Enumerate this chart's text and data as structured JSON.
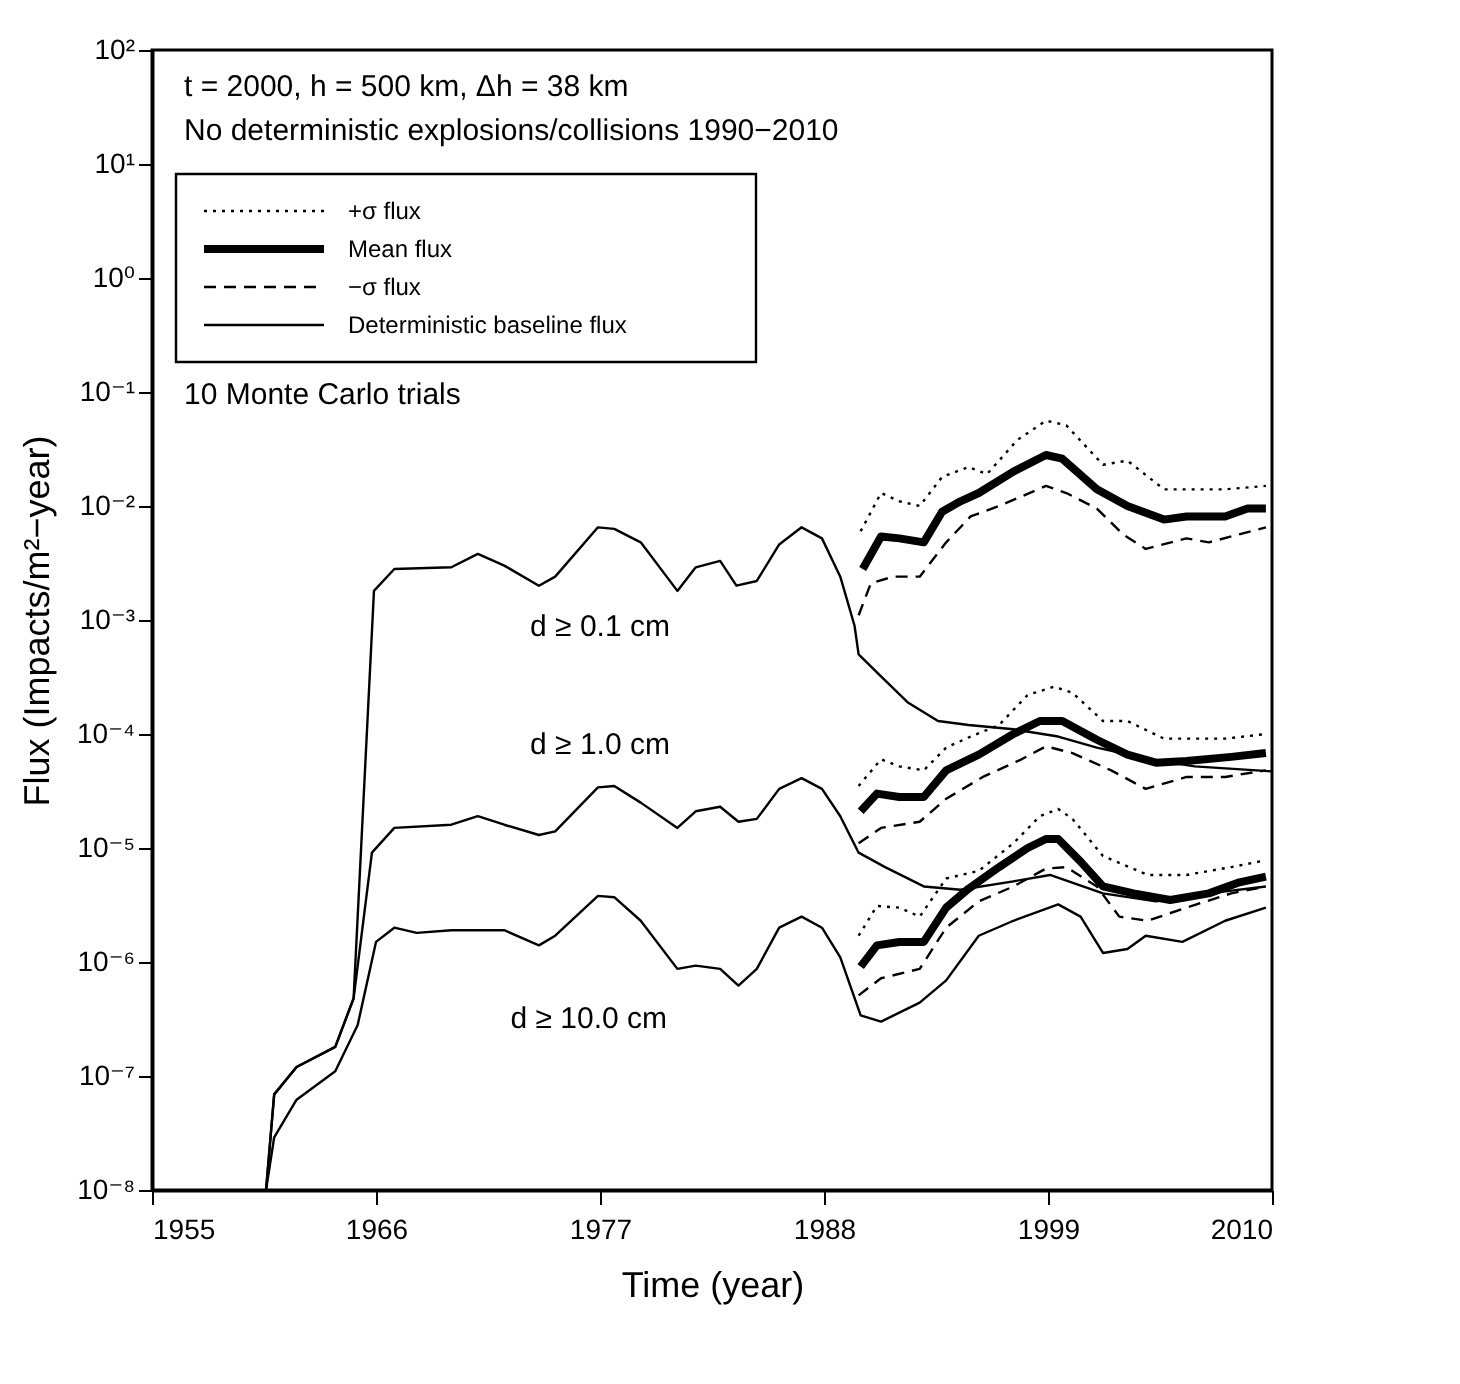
{
  "chart_data": {
    "type": "line",
    "xlabel": "Time (year)",
    "ylabel": "Flux (Impacts/m²−year)",
    "log": "y",
    "grid": false,
    "legend": "top left",
    "xlim": [
      1955,
      2010
    ],
    "xticks": [
      1955,
      1966,
      1977,
      1988,
      1999,
      2010
    ],
    "ylim": [
      1e-08,
      100
    ],
    "yticks": [
      {
        "value": 1e-08,
        "label": "10⁻⁸"
      },
      {
        "value": 1e-07,
        "label": "10⁻⁷"
      },
      {
        "value": 1e-06,
        "label": "10⁻⁶"
      },
      {
        "value": 1e-05,
        "label": "10⁻⁵"
      },
      {
        "value": 0.0001,
        "label": "10⁻⁴"
      },
      {
        "value": 0.001,
        "label": "10⁻³"
      },
      {
        "value": 0.01,
        "label": "10⁻²"
      },
      {
        "value": 0.1,
        "label": "10⁻¹"
      },
      {
        "value": 1,
        "label": "10⁰"
      },
      {
        "value": 10,
        "label": "10¹"
      },
      {
        "value": 100,
        "label": "10²"
      }
    ],
    "annotations": [
      "t = 2000, h = 500 km, Δh = 38 km",
      "No deterministic explosions/collisions 1990−2010",
      "10 Monte Carlo trials",
      "d ≥ 0.1 cm",
      "d ≥ 1.0 cm",
      "d ≥ 10.0 cm"
    ],
    "series": [
      {
        "name": "+σ flux",
        "color": "#000000",
        "line_style": "dotted",
        "x": [
          1989.8,
          1990.8,
          1991.7,
          1992.7,
          1993.8,
          1995.1,
          1996,
          1997.5,
          1998.9,
          1999.9,
          2001.7,
          2002.9,
          2004.7,
          2007.7,
          2009.7
        ],
        "values": [
          0.006,
          0.013,
          0.011,
          0.01,
          0.018,
          0.022,
          0.019,
          0.038,
          0.056,
          0.051,
          0.023,
          0.025,
          0.014,
          0.014,
          0.015
        ]
      },
      {
        "name": "Mean flux",
        "color": "#000000",
        "line_style": "solid",
        "x": [
          1989.9,
          1990.8,
          1991.7,
          1992.9,
          1993.8,
          1994.7,
          1995.6,
          1997.3,
          1998.9,
          1999.7,
          2001.4,
          2002.9,
          2004.7,
          2005.8,
          2007.7,
          2008.8,
          2009.7
        ],
        "values": [
          0.0028,
          0.0054,
          0.0052,
          0.0048,
          0.0089,
          0.011,
          0.013,
          0.02,
          0.028,
          0.026,
          0.014,
          0.01,
          0.0076,
          0.0081,
          0.0081,
          0.0095,
          0.0095
        ]
      },
      {
        "name": "−σ flux",
        "color": "#000000",
        "line_style": "dashed",
        "x": [
          1989.7,
          1990.3,
          1991.4,
          1992.7,
          1994,
          1995.2,
          1996.6,
          1998.9,
          1999.9,
          2001.4,
          2002.7,
          2003.8,
          2005.8,
          2006.9,
          2009.7
        ],
        "values": [
          0.0011,
          0.0021,
          0.0024,
          0.0024,
          0.0048,
          0.0081,
          0.01,
          0.015,
          0.013,
          0.0095,
          0.0056,
          0.0042,
          0.0052,
          0.0048,
          0.0065
        ]
      },
      {
        "name": "Deterministic baseline flux",
        "color": "#000000",
        "line_style": "solid",
        "x": [
          1960.6,
          1961,
          1962.1,
          1964,
          1964.9,
          1965.9,
          1966.9,
          1969.7,
          1971,
          1972.3,
          1974,
          1974.8,
          1976.9,
          1977.7,
          1979,
          1980.8,
          1981.7,
          1982.9,
          1983.7,
          1984.7,
          1985.8,
          1986.9,
          1987.9,
          1988.8,
          1989.5,
          1989.7,
          1990.8,
          1992.1,
          1993.6,
          1995.1,
          1997.3,
          1999.5,
          2001.4,
          2004,
          2006.2,
          2010
        ],
        "values": [
          1e-08,
          6.9e-08,
          1.2e-07,
          1.8e-07,
          4.8e-07,
          0.0018,
          0.0028,
          0.0029,
          0.0038,
          0.003,
          0.002,
          0.0024,
          0.0065,
          0.0063,
          0.0048,
          0.0018,
          0.0029,
          0.0033,
          0.002,
          0.0022,
          0.0046,
          0.0065,
          0.0052,
          0.0024,
          0.00089,
          0.0005,
          0.00032,
          0.00019,
          0.00013,
          0.00012,
          0.00011,
          9.5e-05,
          7.6e-05,
          6e-05,
          5.2e-05,
          4.7e-05
        ]
      },
      {
        "color": "#000000",
        "line_style": "dotted",
        "x": [
          1989.7,
          1990.8,
          1991.7,
          1992.9,
          1994,
          1995.2,
          1996.6,
          1998,
          1999.3,
          2000.2,
          2001.7,
          2002.9,
          2004.7,
          2007.7,
          2009.7
        ],
        "values": [
          3.5e-05,
          6e-05,
          5.2e-05,
          4.8e-05,
          7.6e-05,
          9.5e-05,
          0.00012,
          0.00022,
          0.00026,
          0.00023,
          0.00013,
          0.00013,
          9.1e-05,
          9.1e-05,
          0.0001
        ]
      },
      {
        "color": "#000000",
        "line_style": "solid",
        "x": [
          1989.8,
          1990.6,
          1991.7,
          1992.9,
          1994,
          1995.6,
          1997.3,
          1998.6,
          1999.7,
          2001.4,
          2002.9,
          2004.3,
          2005.8,
          2008,
          2009.7
        ],
        "values": [
          2.1e-05,
          3e-05,
          2.8e-05,
          2.8e-05,
          4.8e-05,
          6.6e-05,
          0.0001,
          0.00013,
          0.00013,
          8.9e-05,
          6.6e-05,
          5.6e-05,
          5.8e-05,
          6.3e-05,
          6.8e-05
        ]
      },
      {
        "color": "#000000",
        "line_style": "dashed",
        "x": [
          1989.7,
          1990.8,
          1992.7,
          1994,
          1995.8,
          1997.7,
          1998.9,
          2000.2,
          2002.1,
          2003.8,
          2005.8,
          2007.7,
          2009.7
        ],
        "values": [
          1.1e-05,
          1.5e-05,
          1.7e-05,
          2.7e-05,
          4.2e-05,
          6e-05,
          7.8e-05,
          6.8e-05,
          4.8e-05,
          3.3e-05,
          4.2e-05,
          4.2e-05,
          4.8e-05
        ]
      },
      {
        "color": "#000000",
        "line_style": "solid",
        "x": [
          1960.6,
          1961,
          1962.1,
          1964,
          1964.9,
          1965.8,
          1966.9,
          1969.7,
          1971,
          1972.3,
          1974,
          1974.8,
          1976.9,
          1977.7,
          1979,
          1980.8,
          1981.7,
          1982.9,
          1983.8,
          1984.7,
          1985.8,
          1986.9,
          1987.9,
          1988.8,
          1989.7,
          1991,
          1992.9,
          1994.7,
          1997.3,
          1999.1,
          2001.7,
          2004.3,
          2006.9,
          2009.7
        ],
        "values": [
          1e-08,
          6.9e-08,
          1.2e-07,
          1.8e-07,
          4.8e-07,
          9.1e-06,
          1.5e-05,
          1.6e-05,
          1.9e-05,
          1.6e-05,
          1.3e-05,
          1.4e-05,
          3.4e-05,
          3.5e-05,
          2.5e-05,
          1.5e-05,
          2.1e-05,
          2.3e-05,
          1.7e-05,
          1.8e-05,
          3.3e-05,
          4.1e-05,
          3.3e-05,
          1.9e-05,
          9.1e-06,
          6.8e-06,
          4.6e-06,
          4.3e-06,
          5.1e-06,
          5.8e-06,
          4e-06,
          3.4e-06,
          4e-06,
          4.6e-06
        ]
      },
      {
        "color": "#000000",
        "line_style": "dotted",
        "x": [
          1989.7,
          1990.6,
          1991.7,
          1992.7,
          1994,
          1995.6,
          1997.3,
          1998.6,
          1999.5,
          2000.2,
          2001.7,
          2003.9,
          2005.8,
          2008,
          2009.7
        ],
        "values": [
          1.7e-06,
          3.1e-06,
          3e-06,
          2.5e-06,
          5.4e-06,
          6.3e-06,
          1.1e-05,
          1.9e-05,
          2.2e-05,
          1.8e-05,
          8.5e-06,
          5.8e-06,
          5.8e-06,
          6.8e-06,
          7.8e-06
        ]
      },
      {
        "color": "#000000",
        "line_style": "solid",
        "x": [
          1989.8,
          1990.6,
          1991.7,
          1992.9,
          1994,
          1995.1,
          1996.6,
          1998,
          1998.9,
          1999.5,
          2000.6,
          2001.7,
          2003.2,
          2005,
          2006.9,
          2008.4,
          2009.7
        ],
        "values": [
          9.1e-07,
          1.4e-06,
          1.5e-06,
          1.5e-06,
          3e-06,
          4.4e-06,
          6.8e-06,
          1e-05,
          1.2e-05,
          1.2e-05,
          7.6e-06,
          4.6e-06,
          4e-06,
          3.5e-06,
          4e-06,
          5e-06,
          5.6e-06
        ]
      },
      {
        "color": "#000000",
        "line_style": "dashed",
        "x": [
          1989.7,
          1990.8,
          1992.7,
          1994,
          1995.6,
          1997.3,
          1998.9,
          1999.9,
          2001.4,
          2002.5,
          2003.9,
          2005.8,
          2008,
          2009.7
        ],
        "values": [
          5.1e-07,
          7.2e-07,
          8.7e-07,
          2e-06,
          3.4e-06,
          4.6e-06,
          6.6e-06,
          6.8e-06,
          4.6e-06,
          2.5e-06,
          2.3e-06,
          3e-06,
          4e-06,
          4.6e-06
        ]
      },
      {
        "color": "#000000",
        "line_style": "solid",
        "x": [
          1960.6,
          1961,
          1962.1,
          1964,
          1965.1,
          1966,
          1966.9,
          1968,
          1969.7,
          1971,
          1972.3,
          1974,
          1974.8,
          1976.9,
          1977.7,
          1979,
          1980.8,
          1981.7,
          1982.9,
          1983.8,
          1984.7,
          1985.8,
          1986.9,
          1987.9,
          1988.8,
          1989.8,
          1990.8,
          1992.7,
          1994,
          1995.6,
          1997.3,
          1999.5,
          2000.6,
          2001.7,
          2002.9,
          2003.8,
          2005.6,
          2007.7,
          2009.7
        ],
        "values": [
          1e-08,
          2.9e-08,
          6.2e-08,
          1.1e-07,
          2.8e-07,
          1.5e-06,
          2e-06,
          1.8e-06,
          1.9e-06,
          1.9e-06,
          1.9e-06,
          1.4e-06,
          1.7e-06,
          3.8e-06,
          3.7e-06,
          2.3e-06,
          8.7e-07,
          9.3e-07,
          8.7e-07,
          6.2e-07,
          8.7e-07,
          2e-06,
          2.5e-06,
          2e-06,
          1.1e-06,
          3.4e-07,
          3e-07,
          4.4e-07,
          6.9e-07,
          1.7e-06,
          2.3e-06,
          3.2e-06,
          2.5e-06,
          1.2e-06,
          1.3e-06,
          1.7e-06,
          1.5e-06,
          2.3e-06,
          3e-06
        ]
      }
    ]
  }
}
